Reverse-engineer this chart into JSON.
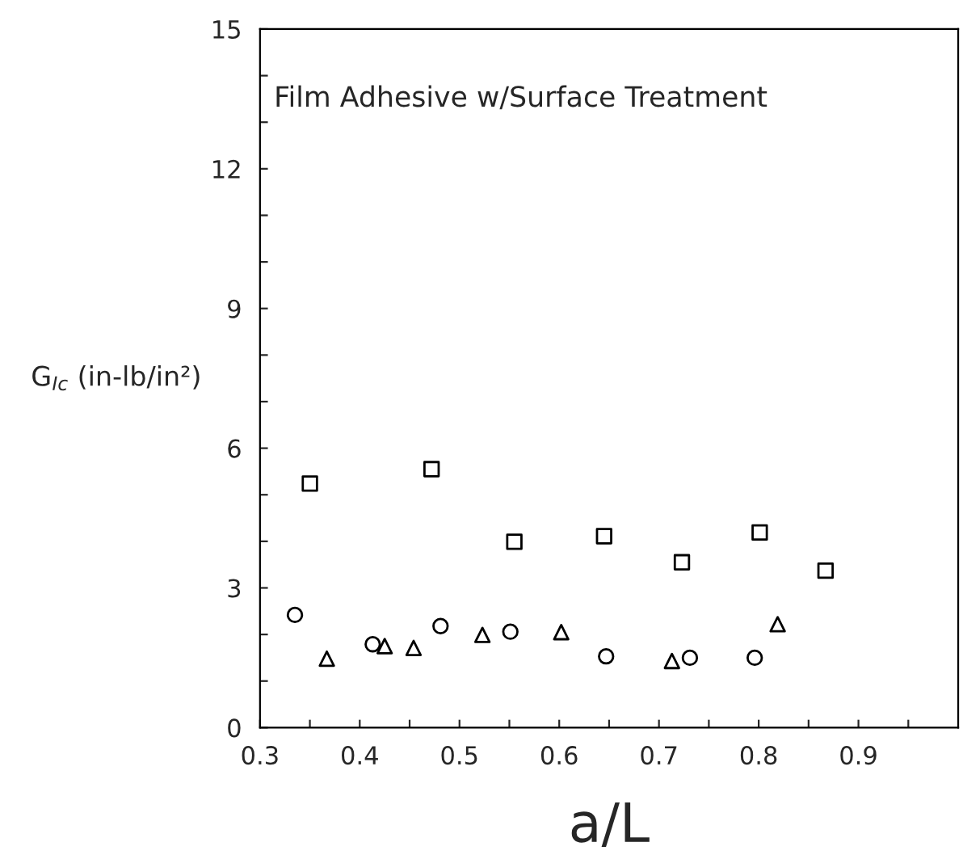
{
  "chart_data": {
    "type": "scatter",
    "xlabel": "a/L",
    "ylabel": "G$_{Ic}$ (in-lb/in²)",
    "annotations": [
      "Film Adhesive w/Surface Treatment"
    ],
    "xlim": [
      0.3,
      1.0
    ],
    "ylim": [
      0,
      15
    ],
    "xticks": [
      0.3,
      0.4,
      0.5,
      0.6,
      0.7,
      0.8,
      0.9,
      {
        "value": 0.35,
        "label": null
      },
      {
        "value": 0.45,
        "label": null
      },
      {
        "value": 0.55,
        "label": null
      },
      {
        "value": 0.65,
        "label": null
      },
      {
        "value": 0.75,
        "label": null
      },
      {
        "value": 0.85,
        "label": null
      },
      {
        "value": 0.95,
        "label": null
      }
    ],
    "yticks": [
      0,
      3,
      6,
      9,
      12,
      15,
      {
        "value": 1,
        "label": null
      },
      {
        "value": 2,
        "label": null
      },
      {
        "value": 4,
        "label": null
      },
      {
        "value": 5,
        "label": null
      },
      {
        "value": 7,
        "label": null
      },
      {
        "value": 8,
        "label": null
      },
      {
        "value": 10,
        "label": null
      },
      {
        "value": 11,
        "label": null
      },
      {
        "value": 13,
        "label": null
      },
      {
        "value": 14,
        "label": null
      }
    ],
    "grid": false,
    "legend": false,
    "series": [
      {
        "color": "#000000",
        "marker": "square",
        "x": [
          0.35,
          0.472,
          0.555,
          0.645,
          0.723,
          0.801,
          0.867
        ],
        "values": [
          5.24,
          5.55,
          3.99,
          4.11,
          3.55,
          4.19,
          3.37
        ]
      },
      {
        "color": "#000000",
        "marker": "circle",
        "x": [
          0.335,
          0.413,
          0.481,
          0.551,
          0.647,
          0.731,
          0.796
        ],
        "values": [
          2.42,
          1.79,
          2.18,
          2.06,
          1.53,
          1.5,
          1.5
        ]
      },
      {
        "color": "#000000",
        "marker": "triangle",
        "x": [
          0.367,
          0.425,
          0.454,
          0.523,
          0.602,
          0.713,
          0.819
        ],
        "values": [
          1.48,
          1.75,
          1.71,
          1.99,
          2.05,
          1.43,
          2.22
        ]
      }
    ]
  }
}
